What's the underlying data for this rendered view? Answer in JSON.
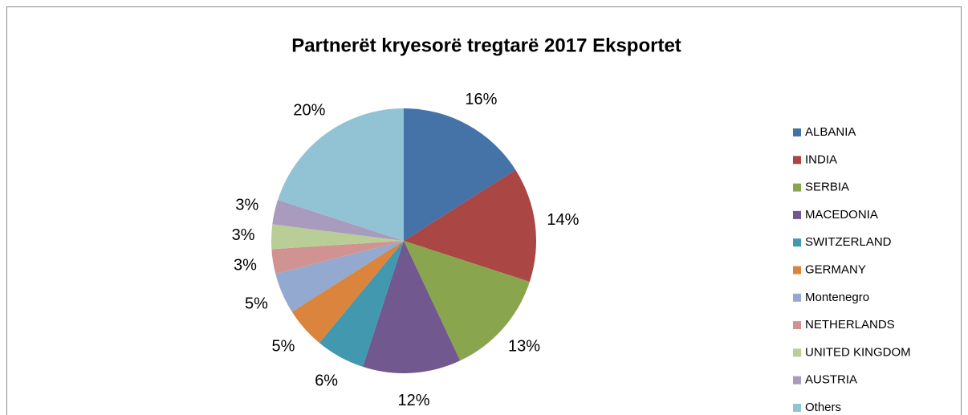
{
  "chart_data": {
    "type": "pie",
    "title": "Partnerët kryesorë tregtarë 2017 Eksportet",
    "categories": [
      "ALBANIA",
      "INDIA",
      "SERBIA",
      "MACEDONIA",
      "SWITZERLAND",
      "GERMANY",
      "Montenegro",
      "NETHERLANDS",
      "UNITED KINGDOM",
      "AUSTRIA",
      "Others"
    ],
    "values": [
      16,
      14,
      13,
      12,
      6,
      5,
      5,
      3,
      3,
      3,
      20
    ],
    "value_labels": [
      "16%",
      "14%",
      "13%",
      "12%",
      "6%",
      "5%",
      "5%",
      "3%",
      "3%",
      "3%",
      "20%"
    ],
    "colors": [
      "#4572A7",
      "#AA4643",
      "#89A54E",
      "#71588F",
      "#4198AF",
      "#DB843D",
      "#93A9CF",
      "#D19392",
      "#B9CD96",
      "#A99BBD",
      "#92C3D5"
    ],
    "legend": "right"
  }
}
